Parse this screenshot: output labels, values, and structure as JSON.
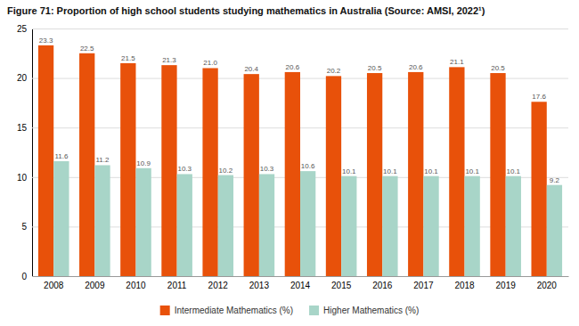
{
  "chart_data": {
    "type": "bar",
    "title": "Figure 71: Proportion of high school students studying mathematics in Australia (Source: AMSI, 2022¹)",
    "categories": [
      "2008",
      "2009",
      "2010",
      "2011",
      "2012",
      "2013",
      "2014",
      "2015",
      "2016",
      "2017",
      "2018",
      "2019",
      "2020"
    ],
    "series": [
      {
        "name": "Intermediate Mathematics (%)",
        "color": "#E8510A",
        "values": [
          23.3,
          22.5,
          21.5,
          21.3,
          21.0,
          20.4,
          20.6,
          20.2,
          20.5,
          20.6,
          21.1,
          20.5,
          17.6
        ],
        "value_labels": [
          "23.3",
          "22.5",
          "21.5",
          "21.3",
          "21.0",
          "20.4",
          "20.6",
          "20.2",
          "20.5",
          "20.6",
          "21.1",
          "20.5",
          "17.6"
        ]
      },
      {
        "name": "Higher Mathematics (%)",
        "color": "#A8D5C8",
        "values": [
          11.6,
          11.2,
          10.9,
          10.3,
          10.2,
          10.3,
          10.6,
          10.1,
          10.1,
          10.1,
          10.1,
          10.1,
          9.2
        ]
      }
    ],
    "ylim": [
      0,
      25
    ],
    "yticks": [
      0,
      5,
      10,
      15,
      20,
      25
    ],
    "grid": true,
    "data_labels": true,
    "legend": "bottom"
  }
}
